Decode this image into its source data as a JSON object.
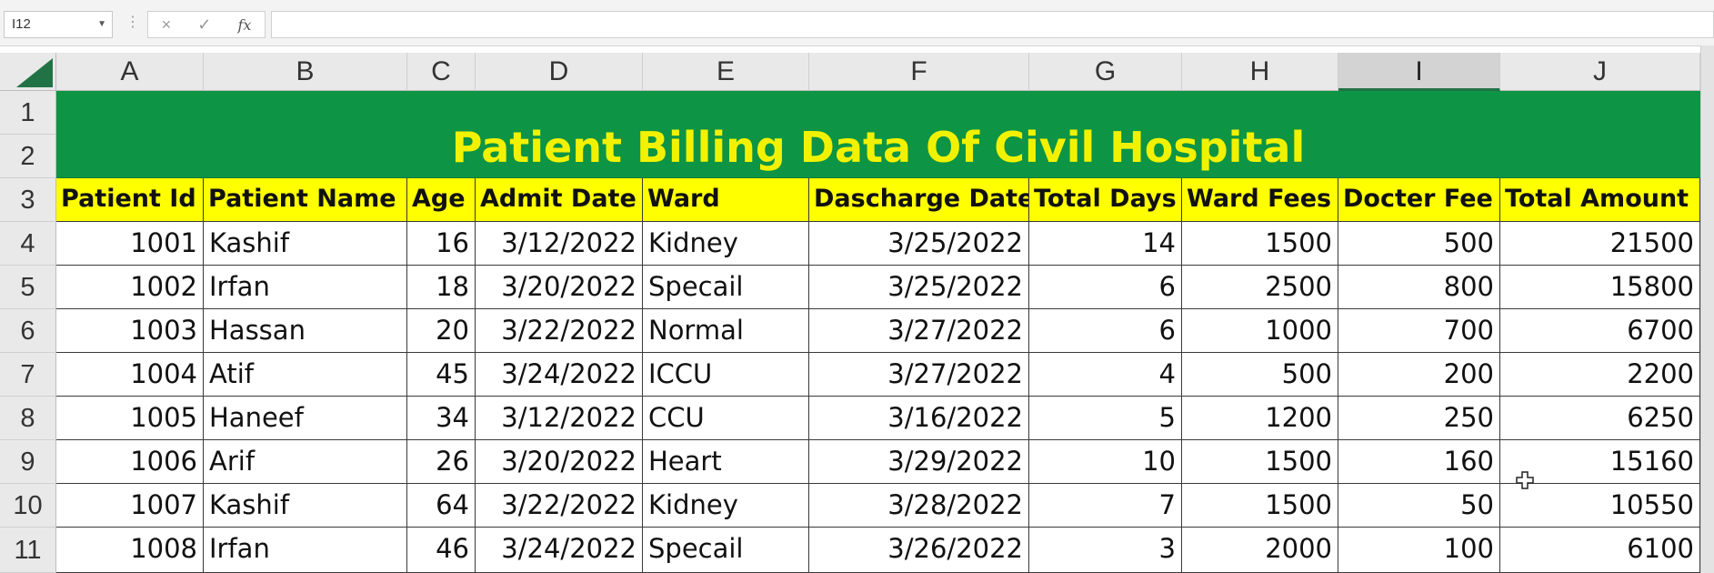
{
  "formula_bar": {
    "name_box": "I12",
    "cancel_icon": "×",
    "enter_icon": "✓",
    "fx_label": "fx",
    "formula": ""
  },
  "columns": [
    "A",
    "B",
    "C",
    "D",
    "E",
    "F",
    "G",
    "H",
    "I",
    "J"
  ],
  "selected_column": "I",
  "row_numbers": [
    "1",
    "2",
    "3",
    "4",
    "5",
    "6",
    "7",
    "8",
    "9",
    "10",
    "11"
  ],
  "title": "Patient Billing Data Of Civil Hospital",
  "headers": [
    "Patient Id",
    "Patient Name",
    "Age",
    "Admit Date",
    "Ward",
    "Dascharge Date",
    "Total Days",
    "Ward Fees",
    "Docter Fee",
    "Total Amount"
  ],
  "rows": [
    [
      "1001",
      "Kashif",
      "16",
      "3/12/2022",
      "Kidney",
      "3/25/2022",
      "14",
      "1500",
      "500",
      "21500"
    ],
    [
      "1002",
      "Irfan",
      "18",
      "3/20/2022",
      "Specail",
      "3/25/2022",
      "6",
      "2500",
      "800",
      "15800"
    ],
    [
      "1003",
      "Hassan",
      "20",
      "3/22/2022",
      "Normal",
      "3/27/2022",
      "6",
      "1000",
      "700",
      "6700"
    ],
    [
      "1004",
      "Atif",
      "45",
      "3/24/2022",
      "ICCU",
      "3/27/2022",
      "4",
      "500",
      "200",
      "2200"
    ],
    [
      "1005",
      "Haneef",
      "34",
      "3/12/2022",
      "CCU",
      "3/16/2022",
      "5",
      "1200",
      "250",
      "6250"
    ],
    [
      "1006",
      "Arif",
      "26",
      "3/20/2022",
      "Heart",
      "3/29/2022",
      "10",
      "1500",
      "160",
      "15160"
    ],
    [
      "1007",
      "Kashif",
      "64",
      "3/22/2022",
      "Kidney",
      "3/28/2022",
      "7",
      "1500",
      "50",
      "10550"
    ],
    [
      "1008",
      "Irfan",
      "46",
      "3/24/2022",
      "Specail",
      "3/26/2022",
      "3",
      "2000",
      "100",
      "6100"
    ]
  ],
  "colors": {
    "title_band": "#0d9444",
    "title_text": "#f2f200",
    "header_fill": "#ffff00",
    "excel_green": "#217346"
  }
}
